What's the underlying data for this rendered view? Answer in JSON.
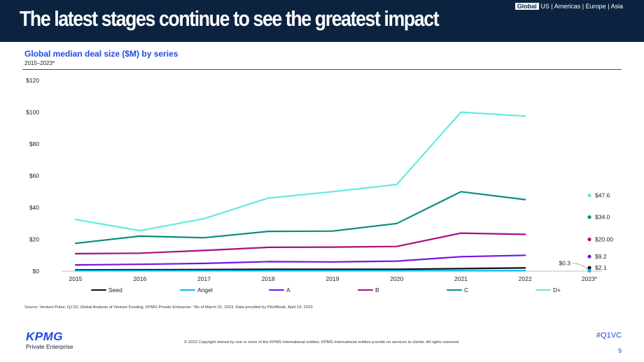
{
  "header": {
    "title": "The latest stages continue to see the greatest impact",
    "regions": [
      "Global",
      "US",
      "Americas",
      "Europe",
      "Asia"
    ],
    "separator": "|"
  },
  "chart_data": {
    "type": "line",
    "title": "Global median deal size ($M) by series",
    "subtitle": "2015–2023*",
    "xlabel": "",
    "ylabel": "",
    "ylim": [
      0,
      120
    ],
    "yticks": [
      0,
      20,
      40,
      60,
      80,
      100,
      120
    ],
    "ytick_labels": [
      "$0",
      "$20",
      "$40",
      "$60",
      "$80",
      "$100",
      "$120"
    ],
    "grid": false,
    "legend_position": "bottom",
    "categories": [
      "2015",
      "2016",
      "2017",
      "2018",
      "2019",
      "2020",
      "2021",
      "2022",
      "2023*"
    ],
    "series": [
      {
        "name": "Seed",
        "color": "#0f0f0f",
        "values": [
          0.8,
          0.9,
          1.0,
          1.2,
          1.2,
          1.2,
          1.6,
          2.0,
          null
        ],
        "point_2023": 2.1,
        "point_label": "$2.1"
      },
      {
        "name": "Angel",
        "color": "#00b8f5",
        "values": [
          0.3,
          0.3,
          0.3,
          0.3,
          0.3,
          0.3,
          0.3,
          0.3,
          null
        ],
        "point_2023": 0.3,
        "point_label": "$0.3"
      },
      {
        "name": "A",
        "color": "#7213ea",
        "values": [
          3.9,
          4.3,
          4.9,
          6.0,
          5.8,
          6.3,
          9.1,
          10.0,
          null
        ],
        "point_2023": 9.2,
        "point_label": "$9.2"
      },
      {
        "name": "B",
        "color": "#ab0d82",
        "values": [
          11.0,
          11.3,
          13.0,
          15.0,
          15.1,
          15.5,
          23.9,
          23.1,
          null
        ],
        "point_2023": 20.0,
        "point_label": "$20.00"
      },
      {
        "name": "C",
        "color": "#098e7e",
        "values": [
          17.5,
          22.0,
          21.0,
          25.0,
          25.2,
          30.0,
          50.0,
          45.0,
          null
        ],
        "point_2023": 34.0,
        "point_label": "$34.0"
      },
      {
        "name": "D+",
        "color": "#63ebda",
        "values": [
          32.5,
          25.5,
          33.0,
          46.0,
          50.0,
          54.5,
          100.0,
          97.5,
          null
        ],
        "point_2023": 47.6,
        "point_label": "$47.6"
      }
    ]
  },
  "footer": {
    "source": "Source: Venture Pulse, Q1'23, Global Analysis of Venture Funding, KPMG Private Enterprise. *As of March 31, 2023. Data provided by PitchBook, April 19, 2023",
    "logo_text": "KPMG",
    "logo_subtext": "Private Enterprise",
    "copyright": "© 2023 Copyright owned by one or more of the KPMG International entities. KPMG International entities provide no services to clients. All rights reserved.",
    "hashtag": "#Q1VC",
    "page_number": "9"
  }
}
